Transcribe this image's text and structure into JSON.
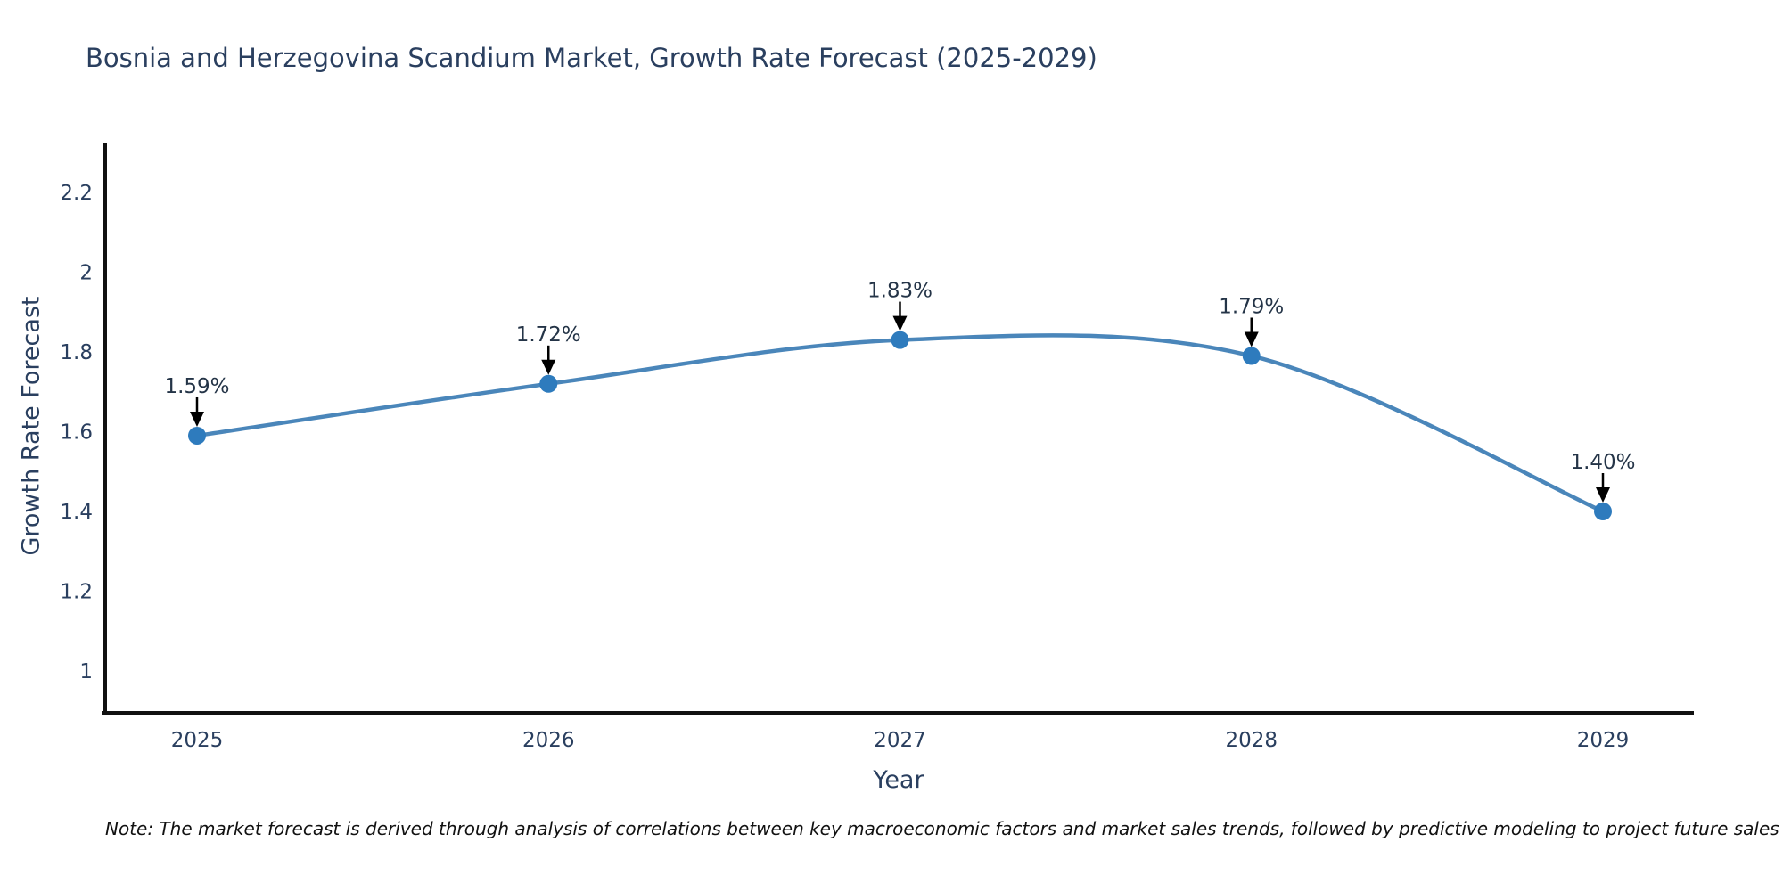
{
  "title": "Bosnia and Herzegovina Scandium Market, Growth Rate Forecast (2025-2029)",
  "note": "Note: The market forecast is derived through analysis of correlations between key macroeconomic factors and market sales trends, followed by predictive modeling to project future sales",
  "chart_data": {
    "type": "line",
    "title": "Bosnia and Herzegovina Scandium Market, Growth Rate Forecast (2025-2029)",
    "xlabel": "Year",
    "ylabel": "Growth Rate Forecast",
    "x": [
      "2025",
      "2026",
      "2027",
      "2028",
      "2029"
    ],
    "values": [
      1.59,
      1.72,
      1.83,
      1.79,
      1.4
    ],
    "point_labels": [
      "1.59%",
      "1.72%",
      "1.83%",
      "1.79%",
      "1.40%"
    ],
    "yticks": [
      2.2,
      2.0,
      1.8,
      1.6,
      1.4,
      1.2,
      1.0
    ],
    "ytick_labels": [
      "2.2",
      "2",
      "1.8",
      "1.6",
      "1.4",
      "1.2",
      "1"
    ],
    "ylim": [
      0.895,
      2.325
    ],
    "grid": false,
    "legend": "none",
    "smooth": true,
    "annotation_arrows": true
  },
  "colors": {
    "line": "#4a86ba",
    "marker": "#2e7bbd",
    "axis": "#111111",
    "tick_label": "#2a3f5f",
    "annotation_text": "#243447",
    "annotation_arrow": "#000000",
    "title": "#2a3f5f",
    "background": "#ffffff"
  }
}
